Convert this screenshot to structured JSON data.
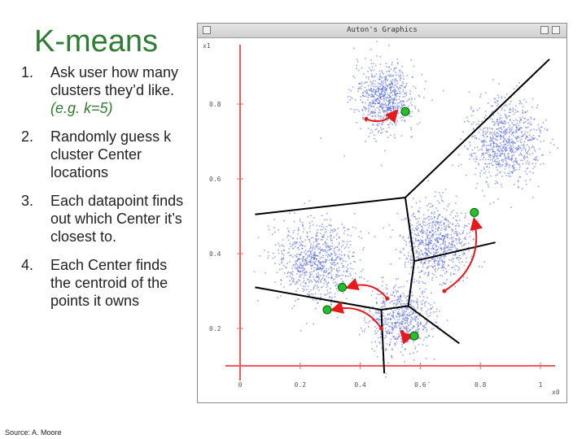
{
  "slide": {
    "title": "K-means",
    "source": "Source: A. Moore",
    "steps": [
      {
        "num": "1.",
        "lines": [
          "Ask user how many",
          "clusters they’d like."
        ],
        "example": "(e.g. k=5)"
      },
      {
        "num": "2.",
        "lines": [
          "Randomly guess k",
          "cluster Center",
          "locations"
        ]
      },
      {
        "num": "3.",
        "lines": [
          "Each datapoint finds",
          "out which Center it’s",
          "closest to."
        ]
      },
      {
        "num": "4.",
        "lines": [
          "Each Center finds",
          "the centroid of the",
          "points it owns"
        ]
      }
    ]
  },
  "window": {
    "title": "Auton's Graphics"
  },
  "chart_data": {
    "type": "scatter",
    "xlabel": "x0",
    "ylabel": "x1",
    "xlim": [
      0,
      1
    ],
    "ylim": [
      0.1,
      0.95
    ],
    "x_ticks": [
      "0",
      "0.2",
      "0.4",
      "0.6",
      "0.8",
      "1"
    ],
    "y_ticks": [
      "0.2",
      "0.4",
      "0.6",
      "0.8"
    ],
    "grid": false,
    "point_color": "#4a5fd8",
    "clusters": [
      {
        "center": [
          0.48,
          0.82
        ],
        "sd": [
          0.05,
          0.045
        ],
        "n": 700
      },
      {
        "center": [
          0.88,
          0.7
        ],
        "sd": [
          0.06,
          0.055
        ],
        "n": 800
      },
      {
        "center": [
          0.65,
          0.43
        ],
        "sd": [
          0.055,
          0.05
        ],
        "n": 750
      },
      {
        "center": [
          0.25,
          0.38
        ],
        "sd": [
          0.065,
          0.055
        ],
        "n": 800
      },
      {
        "center": [
          0.53,
          0.23
        ],
        "sd": [
          0.055,
          0.045
        ],
        "n": 600
      }
    ],
    "old_centers": [
      [
        0.42,
        0.76
      ],
      [
        0.68,
        0.3
      ],
      [
        0.49,
        0.28
      ],
      [
        0.47,
        0.2
      ],
      [
        0.54,
        0.19
      ]
    ],
    "new_centers": [
      [
        0.55,
        0.78
      ],
      [
        0.78,
        0.51
      ],
      [
        0.34,
        0.31
      ],
      [
        0.29,
        0.25
      ],
      [
        0.58,
        0.18
      ]
    ],
    "old_center_color": "#e41a1c",
    "new_center_color": "#22c22a",
    "arrow_color": "#e41a1c",
    "boundary_color": "#000000",
    "axis_color": "#f25a5a",
    "voronoi_edges": [
      [
        [
          0.05,
          0.505
        ],
        [
          0.55,
          0.55
        ]
      ],
      [
        [
          0.55,
          0.55
        ],
        [
          1.03,
          0.92
        ]
      ],
      [
        [
          0.55,
          0.55
        ],
        [
          0.58,
          0.38
        ]
      ],
      [
        [
          0.58,
          0.38
        ],
        [
          0.56,
          0.26
        ]
      ],
      [
        [
          0.05,
          0.31
        ],
        [
          0.47,
          0.25
        ]
      ],
      [
        [
          0.47,
          0.25
        ],
        [
          0.56,
          0.26
        ]
      ],
      [
        [
          0.47,
          0.25
        ],
        [
          0.48,
          0.08
        ]
      ],
      [
        [
          0.56,
          0.26
        ],
        [
          0.73,
          0.16
        ]
      ],
      [
        [
          0.58,
          0.38
        ],
        [
          0.85,
          0.43
        ]
      ]
    ],
    "arrows": [
      [
        [
          0.42,
          0.76
        ],
        [
          0.52,
          0.78
        ]
      ],
      [
        [
          0.68,
          0.3
        ],
        [
          0.78,
          0.49
        ]
      ],
      [
        [
          0.49,
          0.28
        ],
        [
          0.36,
          0.31
        ]
      ],
      [
        [
          0.47,
          0.2
        ],
        [
          0.31,
          0.25
        ]
      ],
      [
        [
          0.54,
          0.19
        ],
        [
          0.57,
          0.18
        ]
      ]
    ]
  }
}
